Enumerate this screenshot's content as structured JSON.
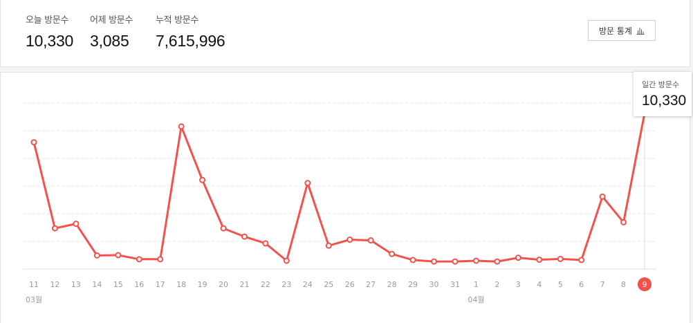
{
  "stats": {
    "today_label": "오늘 방문수",
    "today_value": "10,330",
    "yesterday_label": "어제 방문수",
    "yesterday_value": "3,085",
    "total_label": "누적 방문수",
    "total_value": "7,615,996"
  },
  "stats_button_label": "방문 통계",
  "tooltip": {
    "label": "일간 방문수",
    "value": "10,330"
  },
  "colors": {
    "line": "#f4514c",
    "grid": "#e6e6e6",
    "axis": "#dddddd",
    "tick": "#999999"
  },
  "chart_data": {
    "type": "line",
    "categories": [
      "11",
      "12",
      "13",
      "14",
      "15",
      "16",
      "17",
      "18",
      "19",
      "20",
      "21",
      "22",
      "23",
      "24",
      "25",
      "26",
      "27",
      "28",
      "29",
      "30",
      "31",
      "1",
      "2",
      "3",
      "4",
      "5",
      "6",
      "7",
      "8",
      "9"
    ],
    "month_labels": [
      {
        "at": "11",
        "text": "03월"
      },
      {
        "at": "1",
        "text": "04월"
      }
    ],
    "values": [
      8400,
      2700,
      3000,
      900,
      920,
      650,
      650,
      9450,
      5900,
      2700,
      2150,
      1700,
      550,
      5700,
      1550,
      1950,
      1900,
      1000,
      600,
      500,
      500,
      550,
      500,
      750,
      620,
      670,
      600,
      4800,
      3100,
      10330
    ],
    "ylim": [
      0,
      11000
    ],
    "grid": true,
    "highlight_index": 29
  }
}
